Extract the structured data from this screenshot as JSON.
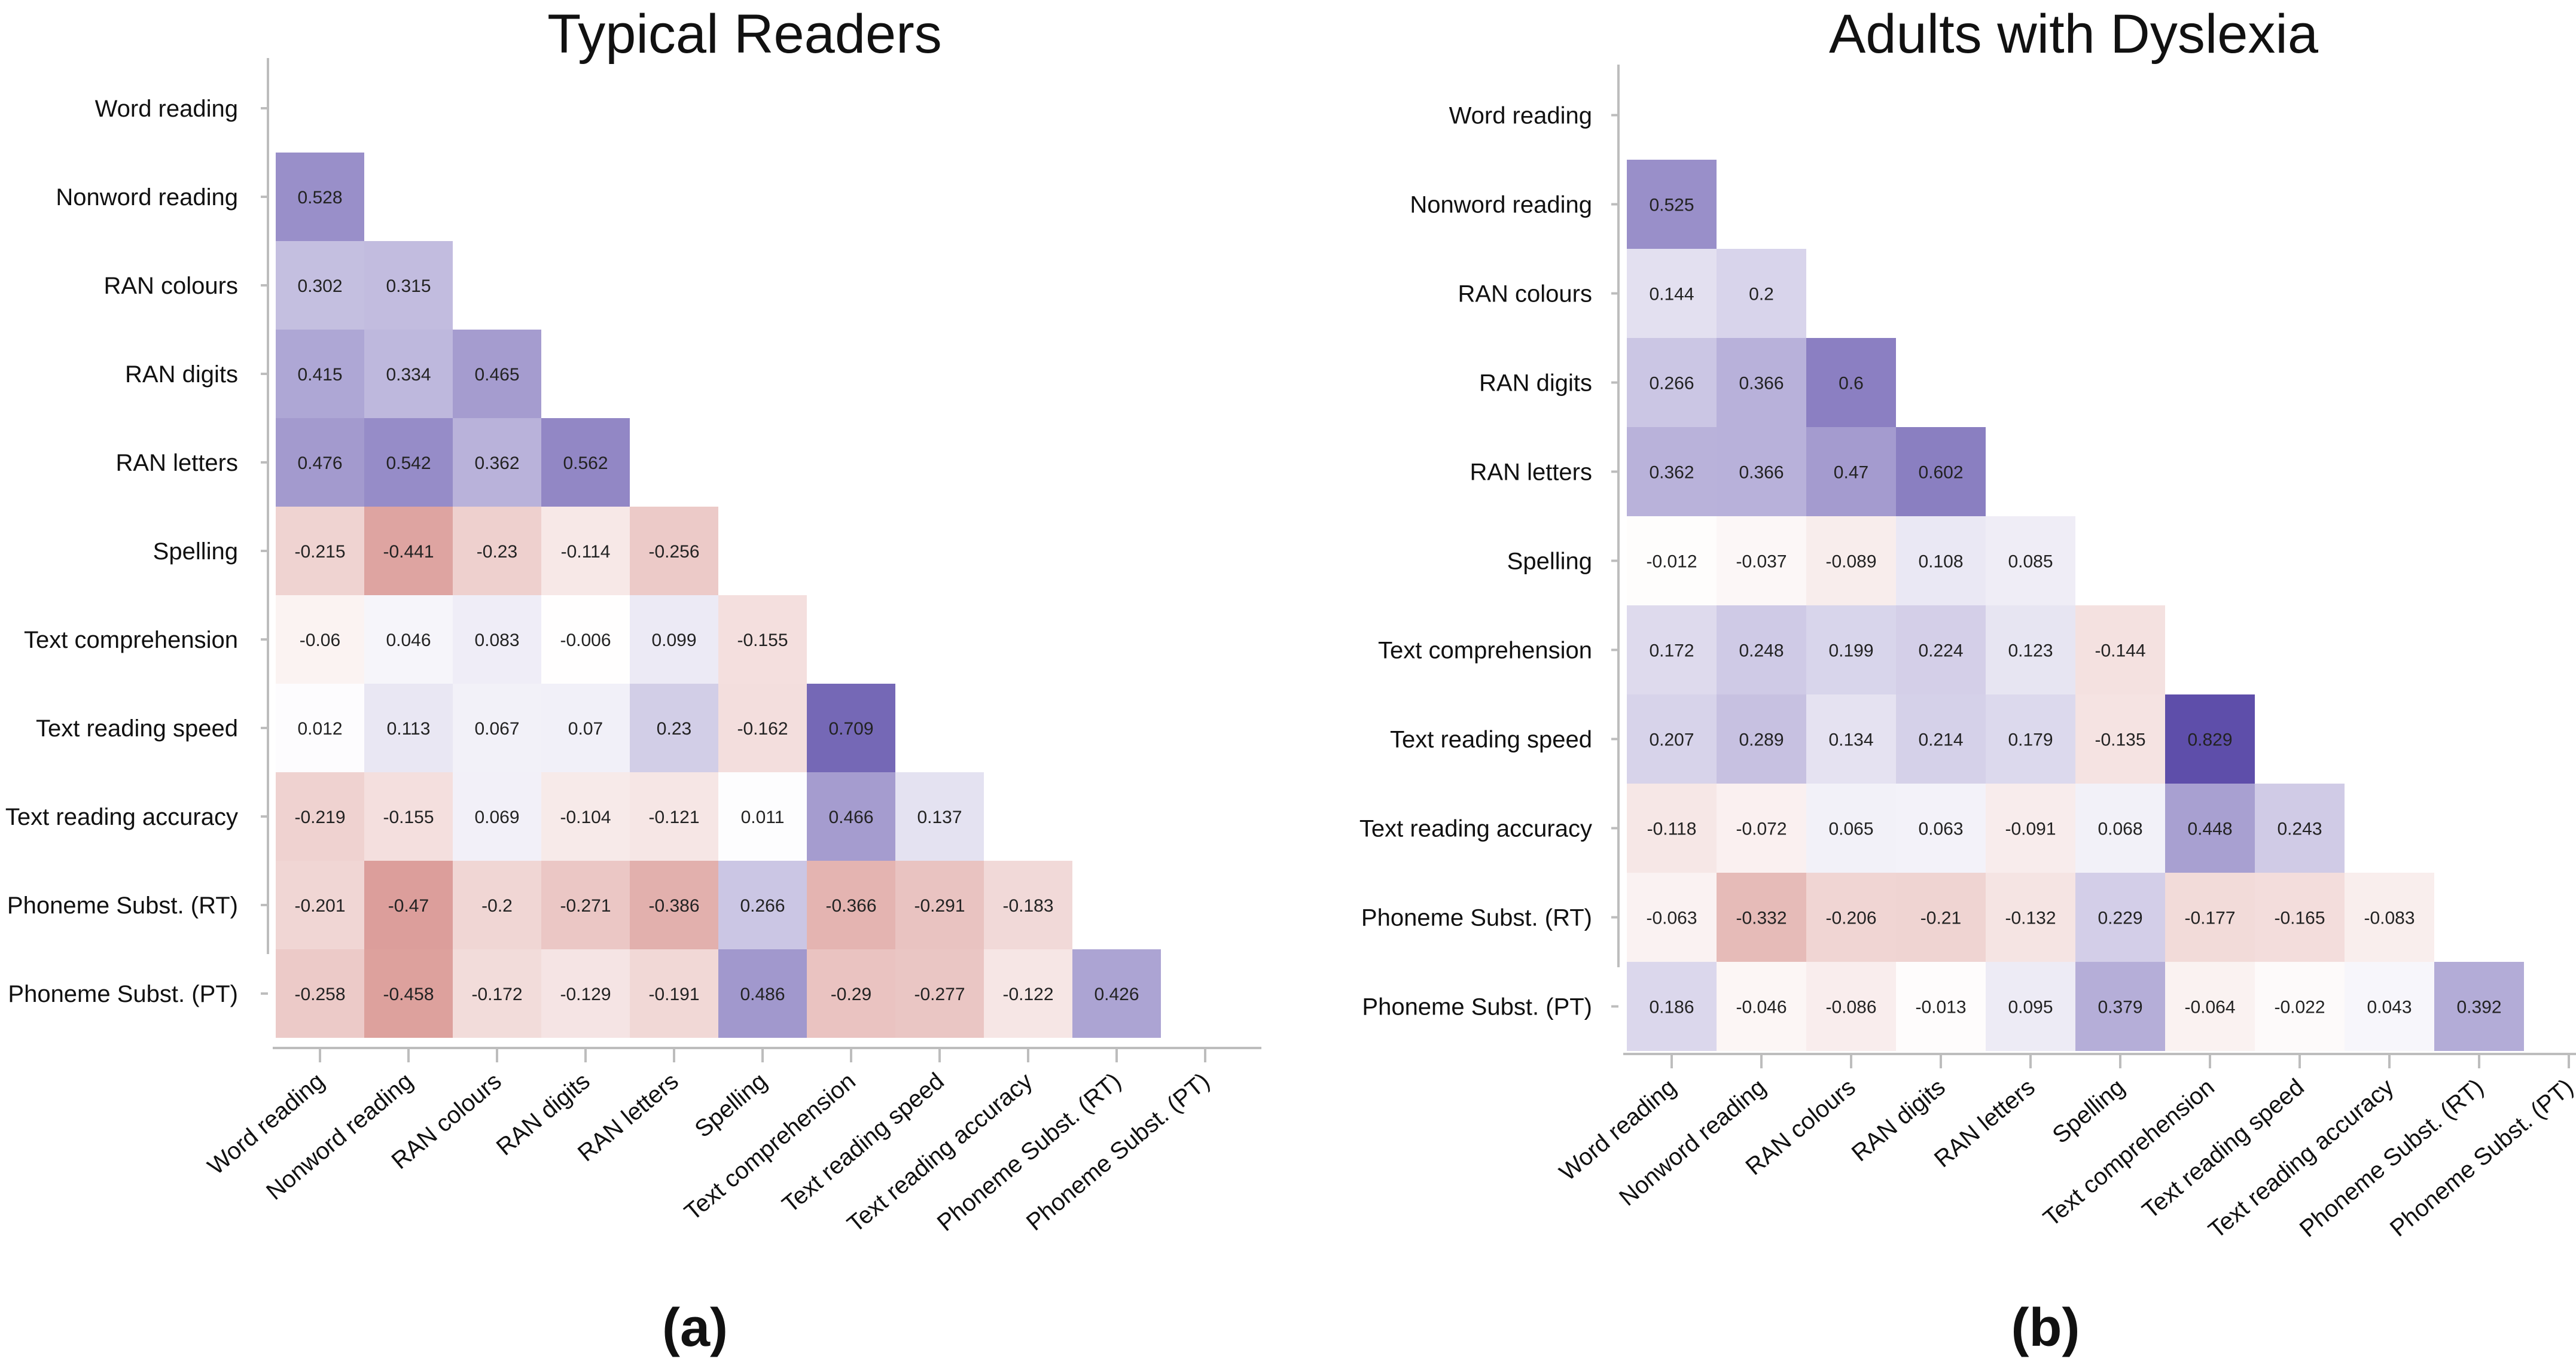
{
  "chart_data": [
    {
      "type": "heatmap",
      "title": "Typical Readers",
      "panel_label": "(a)",
      "variables": [
        "Word reading",
        "Nonword reading",
        "RAN colours",
        "RAN digits",
        "RAN letters",
        "Spelling",
        "Text comprehension",
        "Text reading speed",
        "Text reading accuracy",
        "Phoneme Subst. (RT)",
        "Phoneme Subst. (PT)"
      ],
      "lower_triangle": [
        [],
        [
          "0.528"
        ],
        [
          "0.302",
          "0.315"
        ],
        [
          "0.415",
          "0.334",
          "0.465"
        ],
        [
          "0.476",
          "0.542",
          "0.362",
          "0.562"
        ],
        [
          "-0.215",
          "-0.441",
          "-0.23",
          "-0.114",
          "-0.256"
        ],
        [
          "-0.06",
          "0.046",
          "0.083",
          "-0.006",
          "0.099",
          "-0.155"
        ],
        [
          "0.012",
          "0.113",
          "0.067",
          "0.07",
          "0.23",
          "-0.162",
          "0.709"
        ],
        [
          "-0.219",
          "-0.155",
          "0.069",
          "-0.104",
          "-0.121",
          "0.011",
          "0.466",
          "0.137"
        ],
        [
          "-0.201",
          "-0.47",
          "-0.2",
          "-0.271",
          "-0.386",
          "0.266",
          "-0.366",
          "-0.291",
          "-0.183"
        ],
        [
          "-0.258",
          "-0.458",
          "-0.172",
          "-0.129",
          "-0.191",
          "0.486",
          "-0.29",
          "-0.277",
          "-0.122",
          "0.426"
        ]
      ],
      "colors": {
        "positive": "#5a4aa8",
        "negative": "#c0504a",
        "zero": "#ffffff"
      }
    },
    {
      "type": "heatmap",
      "title": "Adults with Dyslexia",
      "panel_label": "(b)",
      "variables": [
        "Word reading",
        "Nonword reading",
        "RAN colours",
        "RAN digits",
        "RAN letters",
        "Spelling",
        "Text comprehension",
        "Text reading speed",
        "Text reading accuracy",
        "Phoneme Subst. (RT)",
        "Phoneme Subst. (PT)"
      ],
      "lower_triangle": [
        [],
        [
          "0.525"
        ],
        [
          "0.144",
          "0.2"
        ],
        [
          "0.266",
          "0.366",
          "0.6"
        ],
        [
          "0.362",
          "0.366",
          "0.47",
          "0.602"
        ],
        [
          "-0.012",
          "-0.037",
          "-0.089",
          "0.108",
          "0.085"
        ],
        [
          "0.172",
          "0.248",
          "0.199",
          "0.224",
          "0.123",
          "-0.144"
        ],
        [
          "0.207",
          "0.289",
          "0.134",
          "0.214",
          "0.179",
          "-0.135",
          "0.829"
        ],
        [
          "-0.118",
          "-0.072",
          "0.065",
          "0.063",
          "-0.091",
          "0.068",
          "0.448",
          "0.243"
        ],
        [
          "-0.063",
          "-0.332",
          "-0.206",
          "-0.21",
          "-0.132",
          "0.229",
          "-0.177",
          "-0.165",
          "-0.083"
        ],
        [
          "0.186",
          "-0.046",
          "-0.086",
          "-0.013",
          "0.095",
          "0.379",
          "-0.064",
          "-0.022",
          "0.043",
          "0.392"
        ]
      ],
      "colors": {
        "positive": "#5a4aa8",
        "negative": "#c0504a",
        "zero": "#ffffff"
      }
    }
  ]
}
